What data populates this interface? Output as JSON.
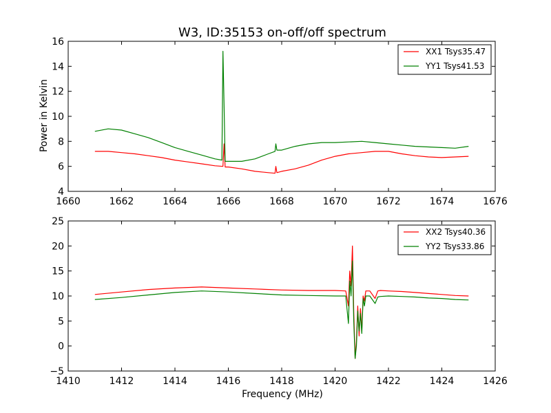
{
  "figure": {
    "background": "#ffffff"
  },
  "chart_data": [
    {
      "type": "line",
      "title": "W3, ID:35153 on-off/off spectrum",
      "xlabel": "",
      "ylabel": "Power in Kelvin",
      "xlim": [
        1660,
        1676
      ],
      "ylim": [
        4,
        16
      ],
      "xticks": [
        "1660",
        "1662",
        "1664",
        "1666",
        "1668",
        "1670",
        "1672",
        "1674",
        "1676"
      ],
      "yticks": [
        "4",
        "6",
        "8",
        "10",
        "12",
        "14",
        "16"
      ],
      "legend_position": "top-right",
      "grid": false,
      "series": [
        {
          "name": "XX1 Tsys35.47",
          "color": "#ff0000",
          "x": [
            1661.0,
            1661.5,
            1662.0,
            1662.5,
            1663.0,
            1663.5,
            1664.0,
            1664.5,
            1665.0,
            1665.5,
            1665.8,
            1665.84,
            1665.88,
            1666.0,
            1666.5,
            1667.0,
            1667.5,
            1667.75,
            1667.78,
            1667.82,
            1668.0,
            1668.5,
            1669.0,
            1669.5,
            1670.0,
            1670.5,
            1671.0,
            1671.5,
            1672.0,
            1672.5,
            1673.0,
            1673.5,
            1674.0,
            1674.5,
            1675.0
          ],
          "y": [
            7.2,
            7.2,
            7.1,
            7.0,
            6.85,
            6.7,
            6.5,
            6.35,
            6.2,
            6.05,
            6.0,
            7.8,
            5.95,
            5.95,
            5.8,
            5.6,
            5.5,
            5.45,
            6.0,
            5.5,
            5.6,
            5.8,
            6.1,
            6.5,
            6.8,
            7.0,
            7.1,
            7.2,
            7.2,
            7.0,
            6.85,
            6.75,
            6.7,
            6.75,
            6.8
          ]
        },
        {
          "name": "YY1 Tsys41.53",
          "color": "#008000",
          "x": [
            1661.0,
            1661.5,
            1662.0,
            1662.5,
            1663.0,
            1663.5,
            1664.0,
            1664.5,
            1665.0,
            1665.5,
            1665.76,
            1665.8,
            1665.84,
            1665.88,
            1666.0,
            1666.5,
            1667.0,
            1667.5,
            1667.75,
            1667.78,
            1667.82,
            1668.0,
            1668.5,
            1669.0,
            1669.5,
            1670.0,
            1670.5,
            1671.0,
            1671.5,
            1672.0,
            1672.5,
            1673.0,
            1673.5,
            1674.0,
            1674.5,
            1675.0
          ],
          "y": [
            8.8,
            9.0,
            8.9,
            8.6,
            8.3,
            7.9,
            7.5,
            7.2,
            6.9,
            6.6,
            6.5,
            15.2,
            11.0,
            6.4,
            6.4,
            6.4,
            6.6,
            7.0,
            7.2,
            7.8,
            7.3,
            7.3,
            7.6,
            7.8,
            7.9,
            7.9,
            7.95,
            8.0,
            7.9,
            7.8,
            7.7,
            7.6,
            7.55,
            7.5,
            7.45,
            7.6
          ]
        }
      ]
    },
    {
      "type": "line",
      "title": "",
      "xlabel": "Frequency (MHz)",
      "ylabel": "",
      "xlim": [
        1410,
        1426
      ],
      "ylim": [
        -5,
        25
      ],
      "xticks": [
        "1410",
        "1412",
        "1414",
        "1416",
        "1418",
        "1420",
        "1422",
        "1424",
        "1426"
      ],
      "yticks": [
        "−5",
        "0",
        "5",
        "10",
        "15",
        "20",
        "25"
      ],
      "legend_position": "top-right",
      "grid": false,
      "series": [
        {
          "name": "XX2 Tsys40.36",
          "color": "#ff0000",
          "x": [
            1411.0,
            1412.0,
            1413.0,
            1414.0,
            1415.0,
            1416.0,
            1417.0,
            1418.0,
            1419.0,
            1420.0,
            1420.4,
            1420.5,
            1420.55,
            1420.6,
            1420.65,
            1420.7,
            1420.75,
            1420.8,
            1420.85,
            1420.9,
            1420.95,
            1421.0,
            1421.05,
            1421.1,
            1421.15,
            1421.2,
            1421.3,
            1421.5,
            1421.6,
            1421.7,
            1422.0,
            1422.5,
            1423.0,
            1423.5,
            1424.0,
            1424.5,
            1425.0
          ],
          "y": [
            10.3,
            10.8,
            11.3,
            11.6,
            11.8,
            11.6,
            11.4,
            11.2,
            11.1,
            11.1,
            11.0,
            8.0,
            15.0,
            12.0,
            20.0,
            7.0,
            -2.5,
            1.0,
            8.0,
            2.0,
            7.5,
            3.0,
            10.0,
            9.0,
            11.0,
            11.0,
            11.0,
            9.5,
            11.0,
            11.1,
            11.0,
            10.9,
            10.7,
            10.5,
            10.3,
            10.1,
            10.0
          ]
        },
        {
          "name": "YY2 Tsys33.86",
          "color": "#008000",
          "x": [
            1411.0,
            1412.0,
            1413.0,
            1414.0,
            1415.0,
            1416.0,
            1417.0,
            1418.0,
            1419.0,
            1420.0,
            1420.4,
            1420.5,
            1420.55,
            1420.6,
            1420.65,
            1420.7,
            1420.75,
            1420.8,
            1420.85,
            1420.9,
            1420.95,
            1421.0,
            1421.05,
            1421.1,
            1421.15,
            1421.2,
            1421.3,
            1421.5,
            1421.6,
            1421.7,
            1422.0,
            1422.5,
            1423.0,
            1423.5,
            1424.0,
            1424.5,
            1425.0
          ],
          "y": [
            9.3,
            9.7,
            10.2,
            10.7,
            11.0,
            10.8,
            10.5,
            10.2,
            10.1,
            10.0,
            10.0,
            4.5,
            13.0,
            10.0,
            17.0,
            5.0,
            -2.5,
            0.0,
            7.0,
            3.0,
            6.5,
            2.5,
            9.5,
            8.0,
            10.0,
            10.0,
            10.0,
            8.5,
            9.8,
            9.9,
            10.0,
            9.9,
            9.8,
            9.6,
            9.5,
            9.3,
            9.2
          ]
        }
      ]
    }
  ]
}
